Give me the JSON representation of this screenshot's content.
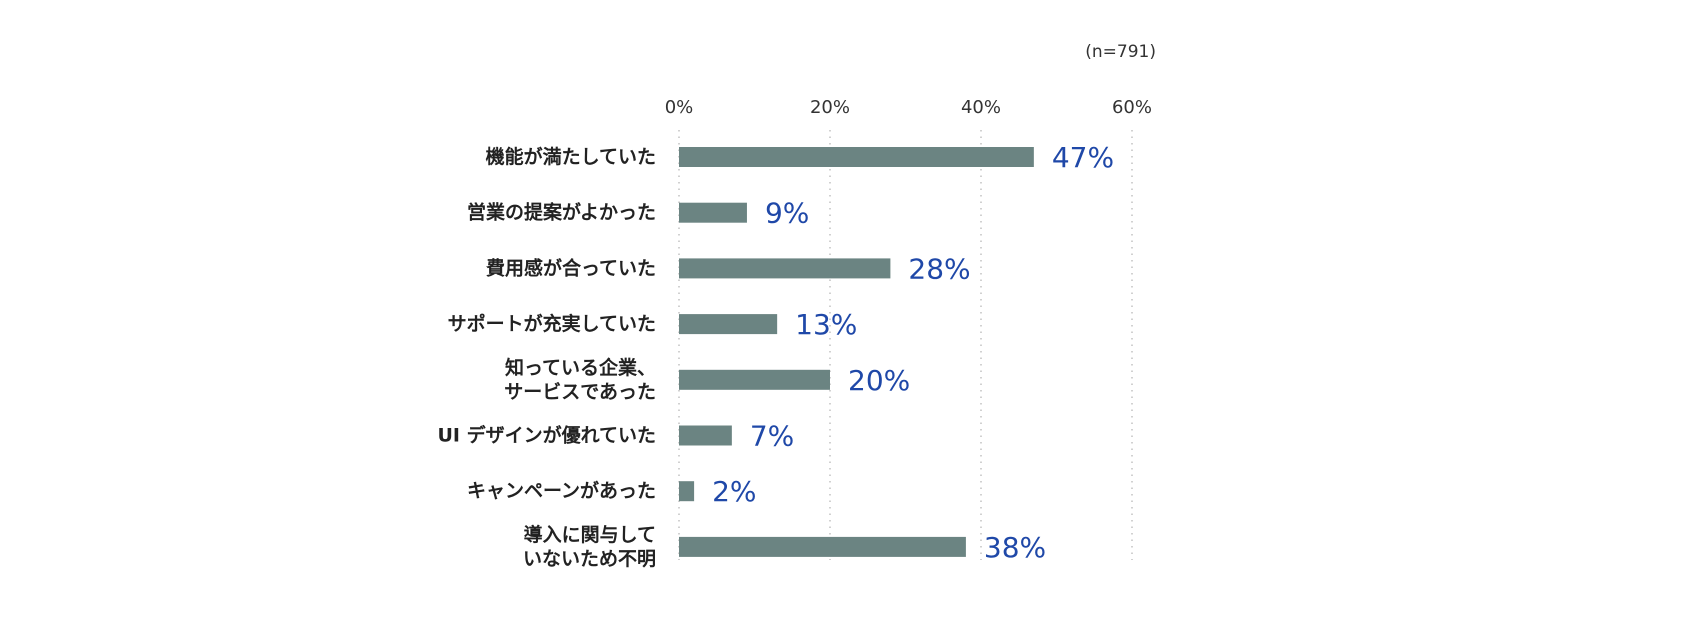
{
  "chart_data": {
    "type": "bar",
    "orientation": "horizontal",
    "sample_note": "(n=791)",
    "categories": [
      [
        "機能が満たしていた"
      ],
      [
        "営業の提案がよかった"
      ],
      [
        "費用感が合っていた"
      ],
      [
        "サポートが充実していた"
      ],
      [
        "知っている企業、",
        "サービスであった"
      ],
      [
        "UI デザインが優れていた"
      ],
      [
        "キャンペーンがあった"
      ],
      [
        "導入に関与して",
        "いないため不明"
      ]
    ],
    "values": [
      47,
      9,
      28,
      13,
      20,
      7,
      2,
      38
    ],
    "value_labels": [
      "47%",
      "9%",
      "28%",
      "13%",
      "20%",
      "7%",
      "2%",
      "38%"
    ],
    "x_ticks": [
      "0%",
      "20%",
      "40%",
      "60%"
    ],
    "xlim": [
      0,
      60
    ],
    "grid": "vertical dotted",
    "colors": {
      "bar": "#6b8482",
      "value_label": "#1f48a8",
      "category_label": "#222222",
      "tick_label": "#333333",
      "grid": "#b8b8b8"
    }
  }
}
